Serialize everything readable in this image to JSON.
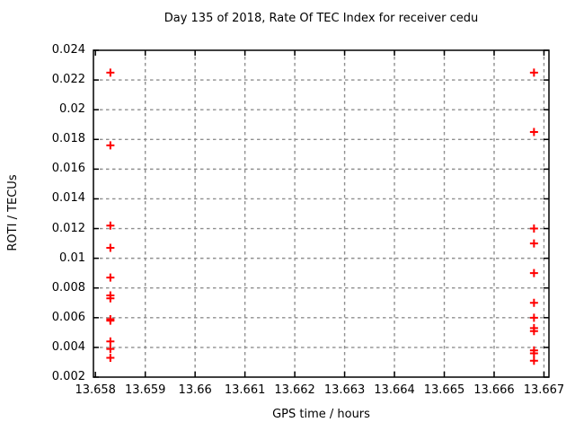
{
  "chart_data": {
    "type": "scatter",
    "title": "Day 135 of 2018, Rate Of TEC Index for receiver cedu",
    "xlabel": "GPS time / hours",
    "ylabel": "ROTI / TECUs",
    "xlim": [
      13.65796,
      13.6671
    ],
    "ylim": [
      0.002,
      0.024
    ],
    "grid": true,
    "legend": "none",
    "marker": "plus",
    "marker_color": "#ff0000",
    "grid_color": "#8f8f8f",
    "axis_color": "#000000",
    "background_color": "#ffffff",
    "x_ticks": [
      {
        "value": 13.658,
        "label": "13.658"
      },
      {
        "value": 13.659,
        "label": "13.659"
      },
      {
        "value": 13.66,
        "label": "13.66"
      },
      {
        "value": 13.661,
        "label": "13.661"
      },
      {
        "value": 13.662,
        "label": "13.662"
      },
      {
        "value": 13.663,
        "label": "13.663"
      },
      {
        "value": 13.664,
        "label": "13.664"
      },
      {
        "value": 13.665,
        "label": "13.665"
      },
      {
        "value": 13.666,
        "label": "13.666"
      },
      {
        "value": 13.667,
        "label": "13.667"
      }
    ],
    "y_ticks": [
      {
        "value": 0.002,
        "label": "0.002"
      },
      {
        "value": 0.004,
        "label": "0.004"
      },
      {
        "value": 0.006,
        "label": "0.006"
      },
      {
        "value": 0.008,
        "label": "0.008"
      },
      {
        "value": 0.01,
        "label": "0.01"
      },
      {
        "value": 0.012,
        "label": "0.012"
      },
      {
        "value": 0.014,
        "label": "0.014"
      },
      {
        "value": 0.016,
        "label": "0.016"
      },
      {
        "value": 0.018,
        "label": "0.018"
      },
      {
        "value": 0.02,
        "label": "0.02"
      },
      {
        "value": 0.022,
        "label": "0.022"
      },
      {
        "value": 0.024,
        "label": "0.024"
      }
    ],
    "points": [
      [
        13.6583,
        0.0225
      ],
      [
        13.6583,
        0.0176
      ],
      [
        13.6583,
        0.0122
      ],
      [
        13.6583,
        0.0107
      ],
      [
        13.6583,
        0.0087
      ],
      [
        13.6583,
        0.0075
      ],
      [
        13.6583,
        0.0073
      ],
      [
        13.6583,
        0.0059
      ],
      [
        13.6583,
        0.0058
      ],
      [
        13.6583,
        0.0044
      ],
      [
        13.6583,
        0.0039
      ],
      [
        13.6583,
        0.0033
      ],
      [
        13.6668,
        0.0225
      ],
      [
        13.6668,
        0.0185
      ],
      [
        13.6668,
        0.012
      ],
      [
        13.6668,
        0.011
      ],
      [
        13.6668,
        0.009
      ],
      [
        13.6668,
        0.007
      ],
      [
        13.6668,
        0.006
      ],
      [
        13.6668,
        0.0053
      ],
      [
        13.6668,
        0.0051
      ],
      [
        13.6668,
        0.0038
      ],
      [
        13.6668,
        0.0036
      ],
      [
        13.6668,
        0.0031
      ]
    ]
  }
}
